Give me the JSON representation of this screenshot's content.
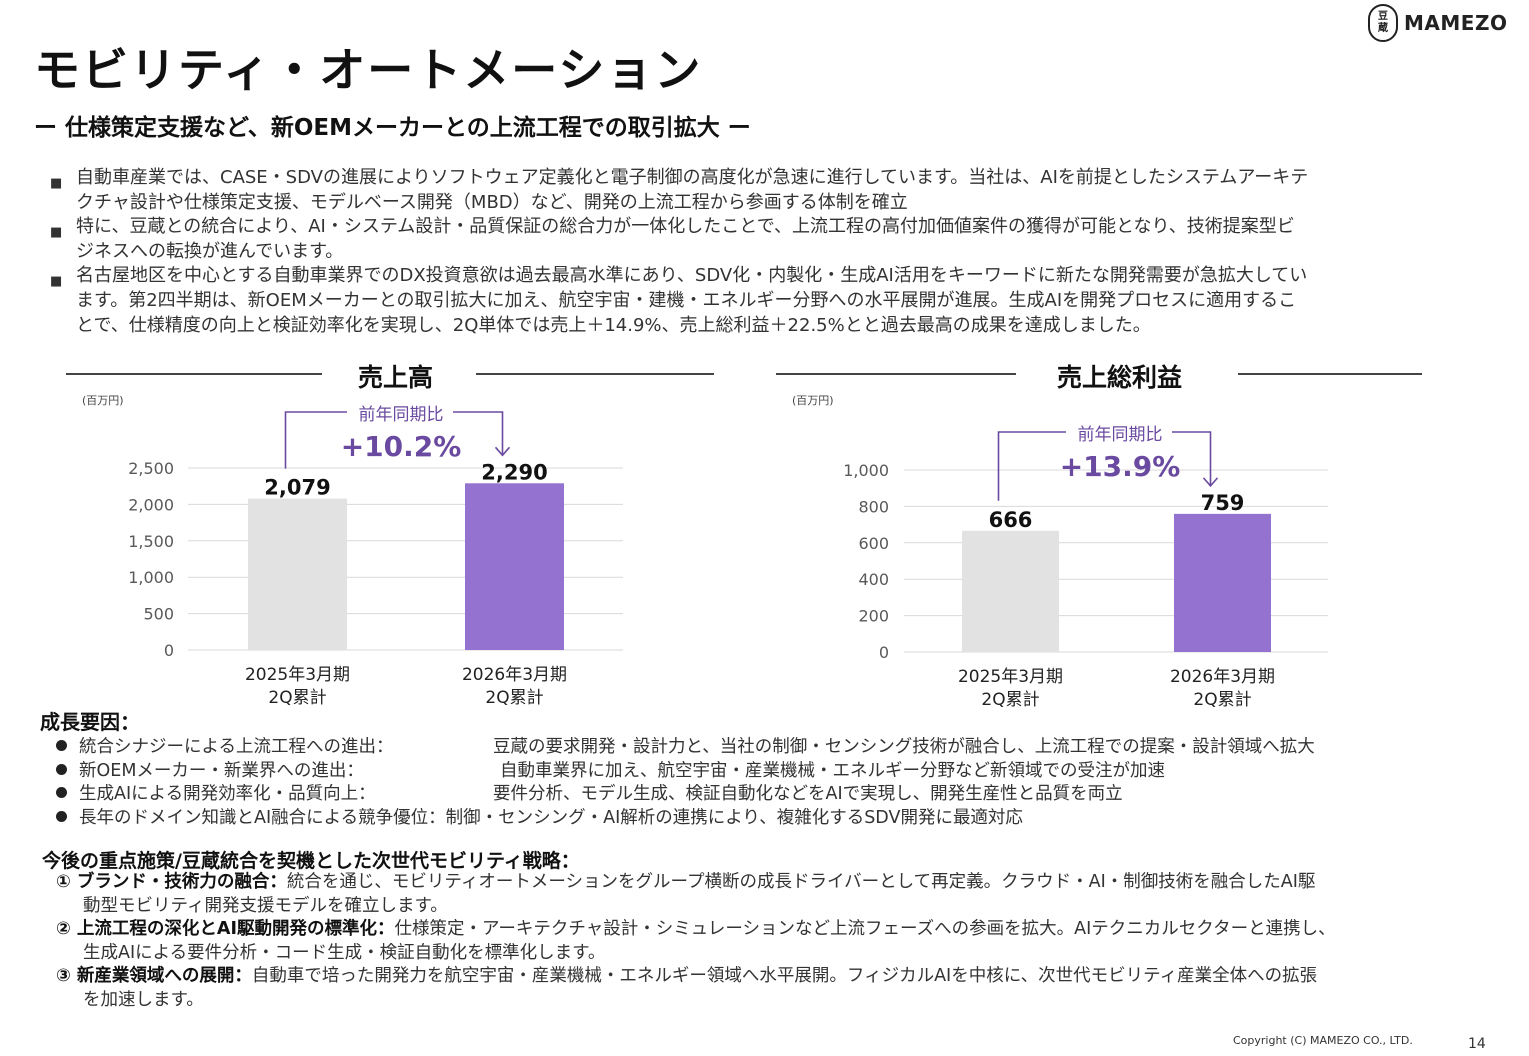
{
  "title": "モビリティ・オートメーション",
  "subtitle": "ー 仕様策定支援など、新OEMメーカーとの上流工程での取引拡大 ー",
  "logo": {
    "mark_top": "豆",
    "mark_bottom": "蔵",
    "word": "MAMEZO"
  },
  "bullets": [
    {
      "marker": "■",
      "lines": [
        "自動車産業では、CASE・SDVの進展によりソフトウェア定義化と電子制御の高度化が急速に進行しています。当社は、AIを前提としたシステムアーキテ",
        "クチャ設計や仕様策定支援、モデルベース開発（MBD）など、開発の上流工程から参画する体制を確立"
      ]
    },
    {
      "marker": "■",
      "lines": [
        "特に、豆蔵との統合により、AI・システム設計・品質保証の総合力が一体化したことで、上流工程の高付加価値案件の獲得が可能となり、技術提案型ビ",
        "ジネスへの転換が進んでいます。"
      ]
    },
    {
      "marker": "■",
      "lines": [
        "名古屋地区を中心とする自動車業界でのDX投資意欲は過去最高水準にあり、SDV化・内製化・生成AI活用をキーワードに新たな開発需要が急拡大してい",
        "ます。第2四半期は、新OEMメーカーとの取引拡大に加え、航空宇宙・建機・エネルギー分野への水平展開が進展。生成AIを開発プロセスに適用するこ",
        "とで、仕様精度の向上と検証効率化を実現し、2Q単体では売上＋14.9%、売上総利益＋22.5%とと過去最高の成果を達成しました。"
      ]
    }
  ],
  "chart_data": [
    {
      "type": "bar",
      "title": "売上高",
      "unit": "(百万円)",
      "categories": [
        [
          "2025年3月期",
          "2Q累計"
        ],
        [
          "2026年3月期",
          "2Q累計"
        ]
      ],
      "values": [
        2079,
        2290
      ],
      "value_labels": [
        "2,079",
        "2,290"
      ],
      "ylim": [
        0,
        2500
      ],
      "yticks": [
        0,
        500,
        1000,
        1500,
        2000,
        2500
      ],
      "ytick_labels": [
        "0",
        "500",
        "1,000",
        "1,500",
        "2,000",
        "2,500"
      ],
      "colors": [
        "#e2e2e2",
        "#9473d0"
      ],
      "grid": true,
      "annotation": {
        "label": "前年同期比",
        "value": "+10.2%"
      }
    },
    {
      "type": "bar",
      "title": "売上総利益",
      "unit": "(百万円)",
      "categories": [
        [
          "2025年3月期",
          "2Q累計"
        ],
        [
          "2026年3月期",
          "2Q累計"
        ]
      ],
      "values": [
        666,
        759
      ],
      "value_labels": [
        "666",
        "759"
      ],
      "ylim": [
        0,
        1000
      ],
      "yticks": [
        0,
        200,
        400,
        600,
        800,
        1000
      ],
      "ytick_labels": [
        "0",
        "200",
        "400",
        "600",
        "800",
        "1,000"
      ],
      "colors": [
        "#e2e2e2",
        "#9473d0"
      ],
      "grid": true,
      "annotation": {
        "label": "前年同期比",
        "value": "+13.9%"
      }
    }
  ],
  "accent_color": "#6a4aa0",
  "growth_factors": {
    "title": "成長要因：",
    "items": [
      {
        "label": "統合シナジーによる上流工程への進出：",
        "desc": "豆蔵の要求開発・設計力と、当社の制御・センシング技術が融合し、上流工程での提案・設計領域へ拡大"
      },
      {
        "label": "新OEMメーカー・新業界への進出：",
        "desc": "自動車業界に加え、航空宇宙・産業機械・エネルギー分野など新領域での受注が加速"
      },
      {
        "label": "生成AIによる開発効率化・品質向上：",
        "desc": "要件分析、モデル生成、検証自動化などをAIで実現し、開発生産性と品質を両立"
      },
      {
        "label": "長年のドメイン知識とAI融合による競争優位：",
        "desc": "制御・センシング・AI解析の連携により、複雑化するSDV開発に最適対応"
      }
    ]
  },
  "strategy": {
    "title": "今後の重点施策/豆蔵統合を契機とした次世代モビリティ戦略：",
    "items": [
      {
        "heading": "① ブランド・技術力の融合：",
        "line1": "統合を通じ、モビリティオートメーションをグループ横断の成長ドライバーとして再定義。クラウド・AI・制御技術を融合したAI駆",
        "line2": "動型モビリティ開発支援モデルを確立します。"
      },
      {
        "heading": "② 上流工程の深化とAI駆動開発の標準化：",
        "line1": "仕様策定・アーキテクチャ設計・シミュレーションなど上流フェーズへの参画を拡大。AIテクニカルセクターと連携し、",
        "line2": "生成AIによる要件分析・コード生成・検証自動化を標準化します。"
      },
      {
        "heading": "③ 新産業領域への展開：",
        "line1": "自動車で培った開発力を航空宇宙・産業機械・エネルギー領域へ水平展開。フィジカルAIを中核に、次世代モビリティ産業全体への拡張",
        "line2": "を加速します。"
      }
    ]
  },
  "footer": {
    "copyright": "Copyright (C) MAMEZO  CO., LTD.",
    "page": "14"
  }
}
